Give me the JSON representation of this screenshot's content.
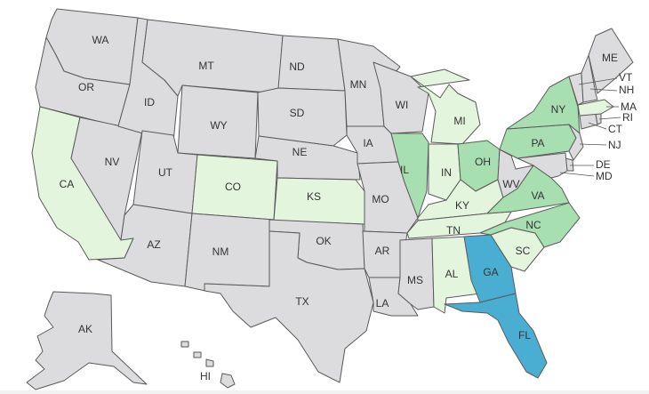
{
  "map": {
    "colors": {
      "none": "#dcdcde",
      "light": "#e3f5dd",
      "medium": "#a8dfb0",
      "high": "#4aaed2",
      "border": "#5a5a5a",
      "background": "#ffffff"
    },
    "states": {
      "WA": {
        "label": "WA",
        "level": "none"
      },
      "OR": {
        "label": "OR",
        "level": "none"
      },
      "CA": {
        "label": "CA",
        "level": "light"
      },
      "NV": {
        "label": "NV",
        "level": "none"
      },
      "ID": {
        "label": "ID",
        "level": "none"
      },
      "MT": {
        "label": "MT",
        "level": "none"
      },
      "WY": {
        "label": "WY",
        "level": "none"
      },
      "UT": {
        "label": "UT",
        "level": "none"
      },
      "AZ": {
        "label": "AZ",
        "level": "none"
      },
      "CO": {
        "label": "CO",
        "level": "light"
      },
      "NM": {
        "label": "NM",
        "level": "none"
      },
      "ND": {
        "label": "ND",
        "level": "none"
      },
      "SD": {
        "label": "SD",
        "level": "none"
      },
      "NE": {
        "label": "NE",
        "level": "none"
      },
      "KS": {
        "label": "KS",
        "level": "light"
      },
      "OK": {
        "label": "OK",
        "level": "none"
      },
      "TX": {
        "label": "TX",
        "level": "none"
      },
      "MN": {
        "label": "MN",
        "level": "none"
      },
      "IA": {
        "label": "IA",
        "level": "none"
      },
      "MO": {
        "label": "MO",
        "level": "none"
      },
      "AR": {
        "label": "AR",
        "level": "none"
      },
      "LA": {
        "label": "LA",
        "level": "none"
      },
      "WI": {
        "label": "WI",
        "level": "none"
      },
      "IL": {
        "label": "IL",
        "level": "medium"
      },
      "MI": {
        "label": "MI",
        "level": "light"
      },
      "IN": {
        "label": "IN",
        "level": "light"
      },
      "OH": {
        "label": "OH",
        "level": "medium"
      },
      "KY": {
        "label": "KY",
        "level": "light"
      },
      "TN": {
        "label": "TN",
        "level": "light"
      },
      "MS": {
        "label": "MS",
        "level": "none"
      },
      "AL": {
        "label": "AL",
        "level": "light"
      },
      "GA": {
        "label": "GA",
        "level": "high"
      },
      "FL": {
        "label": "FL",
        "level": "high"
      },
      "SC": {
        "label": "SC",
        "level": "light"
      },
      "NC": {
        "label": "NC",
        "level": "medium"
      },
      "VA": {
        "label": "VA",
        "level": "medium"
      },
      "WV": {
        "label": "WV",
        "level": "none"
      },
      "PA": {
        "label": "PA",
        "level": "medium"
      },
      "NY": {
        "label": "NY",
        "level": "medium"
      },
      "ME": {
        "label": "ME",
        "level": "none"
      },
      "VT": {
        "label": "VT",
        "level": "none"
      },
      "NH": {
        "label": "NH",
        "level": "none"
      },
      "MA": {
        "label": "MA",
        "level": "light"
      },
      "RI": {
        "label": "RI",
        "level": "none"
      },
      "CT": {
        "label": "CT",
        "level": "none"
      },
      "NJ": {
        "label": "NJ",
        "level": "none"
      },
      "DE": {
        "label": "DE",
        "level": "none"
      },
      "MD": {
        "label": "MD",
        "level": "none"
      },
      "AK": {
        "label": "AK",
        "level": "none"
      },
      "HI": {
        "label": "HI",
        "level": "none"
      }
    }
  }
}
